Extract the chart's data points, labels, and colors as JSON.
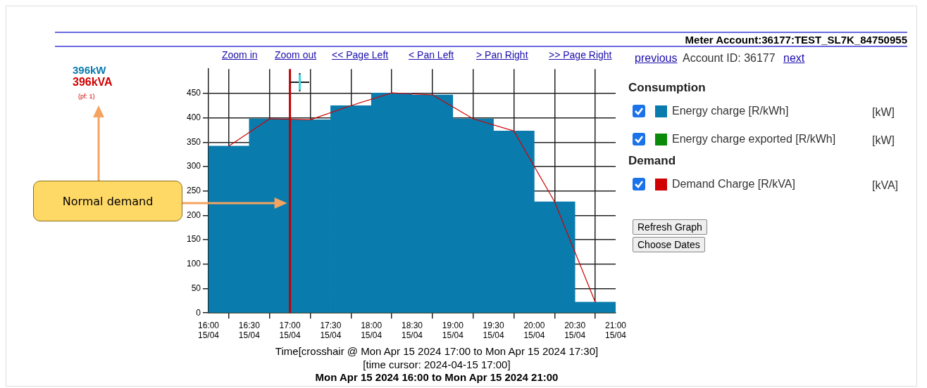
{
  "chart_data": {
    "type": "histogram",
    "title": "Meter Account:36177:TEST_SL7K_84750955",
    "xlabel": "Time[crosshair @ Mon Apr 15 2024 17:00 to Mon Apr 15 2024 17:30]",
    "bins": [
      "2024-04-15T16:00",
      "2024-04-15T16:30",
      "2024-04-15T17:00",
      "2024-04-15T17:30",
      "2024-04-15T18:00",
      "2024-04-15T18:30",
      "2024-04-15T19:00",
      "2024-04-15T19:30",
      "2024-04-15T20:00",
      "2024-04-15T20:30",
      "2024-04-15T21:00"
    ],
    "series": [
      {
        "name": "Energy charge [R/kWh]",
        "color": "#0a7bad",
        "values": [
          342,
          398,
          396,
          425,
          451,
          447,
          398,
          373,
          228,
          22
        ]
      },
      {
        "name": "Energy charge exported [R/kWh]",
        "color": "#0a8a0a",
        "values": [
          0,
          0,
          0,
          0,
          0,
          0,
          0,
          0,
          0,
          0
        ]
      },
      {
        "name": "Demand Charge [R/kVA]",
        "color": "#d00000",
        "type": "line",
        "x": [
          "2024-04-15T16:15",
          "2024-04-15T16:45",
          "2024-04-15T17:15",
          "2024-04-15T17:45",
          "2024-04-15T18:15",
          "2024-04-15T18:45",
          "2024-04-15T19:15",
          "2024-04-15T19:45",
          "2024-04-15T20:15",
          "2024-04-15T20:45"
        ],
        "values": [
          342,
          398,
          396,
          425,
          451,
          447,
          398,
          373,
          228,
          22
        ]
      }
    ],
    "xlim": [
      "2024-04-15T16:00",
      "2024-04-15T21:00"
    ],
    "xticks": [
      {
        "value": "2024-04-15T16:00",
        "label": "16:00\n15/04"
      },
      {
        "value": "2024-04-15T16:30",
        "label": "16:30\n15/04"
      },
      {
        "value": "2024-04-15T17:00",
        "label": "17:00\n15/04"
      },
      {
        "value": "2024-04-15T17:30",
        "label": "17:30\n15/04"
      },
      {
        "value": "2024-04-15T18:00",
        "label": "18:00\n15/04"
      },
      {
        "value": "2024-04-15T18:30",
        "label": "18:30\n15/04"
      },
      {
        "value": "2024-04-15T19:00",
        "label": "19:00\n15/04"
      },
      {
        "value": "2024-04-15T19:30",
        "label": "19:30\n15/04"
      },
      {
        "value": "2024-04-15T20:00",
        "label": "20:00\n15/04"
      },
      {
        "value": "2024-04-15T20:30",
        "label": "20:30\n15/04"
      },
      {
        "value": "2024-04-15T21:00",
        "label": "21:00\n15/04"
      }
    ],
    "ylim": [
      0,
      500
    ],
    "yticks": [
      0,
      50,
      100,
      150,
      200,
      250,
      300,
      350,
      400,
      450
    ],
    "ref_lines": [
      {
        "axis": "x",
        "value": "2024-04-15T17:00",
        "color": "#c00000"
      }
    ],
    "grid": true,
    "legend": "right",
    "marker": "none",
    "annotations": [
      "396kW",
      "396kVA",
      "(pf: 1)",
      "Normal demand",
      "Zoom in",
      "Zoom out",
      "<< Page Left",
      "< Pan Left",
      "> Pan Right",
      ">> Page Right",
      "previous",
      "Account ID: 36177",
      "next",
      "Consumption",
      "Demand",
      "Refresh Graph",
      "Choose Dates",
      "[time cursor: 2024-04-15 17:00]",
      "Mon Apr 15 2024 16:00 to Mon Apr 15 2024 21:00",
      "[kW]",
      "[kW]",
      "[kVA]"
    ]
  }
}
